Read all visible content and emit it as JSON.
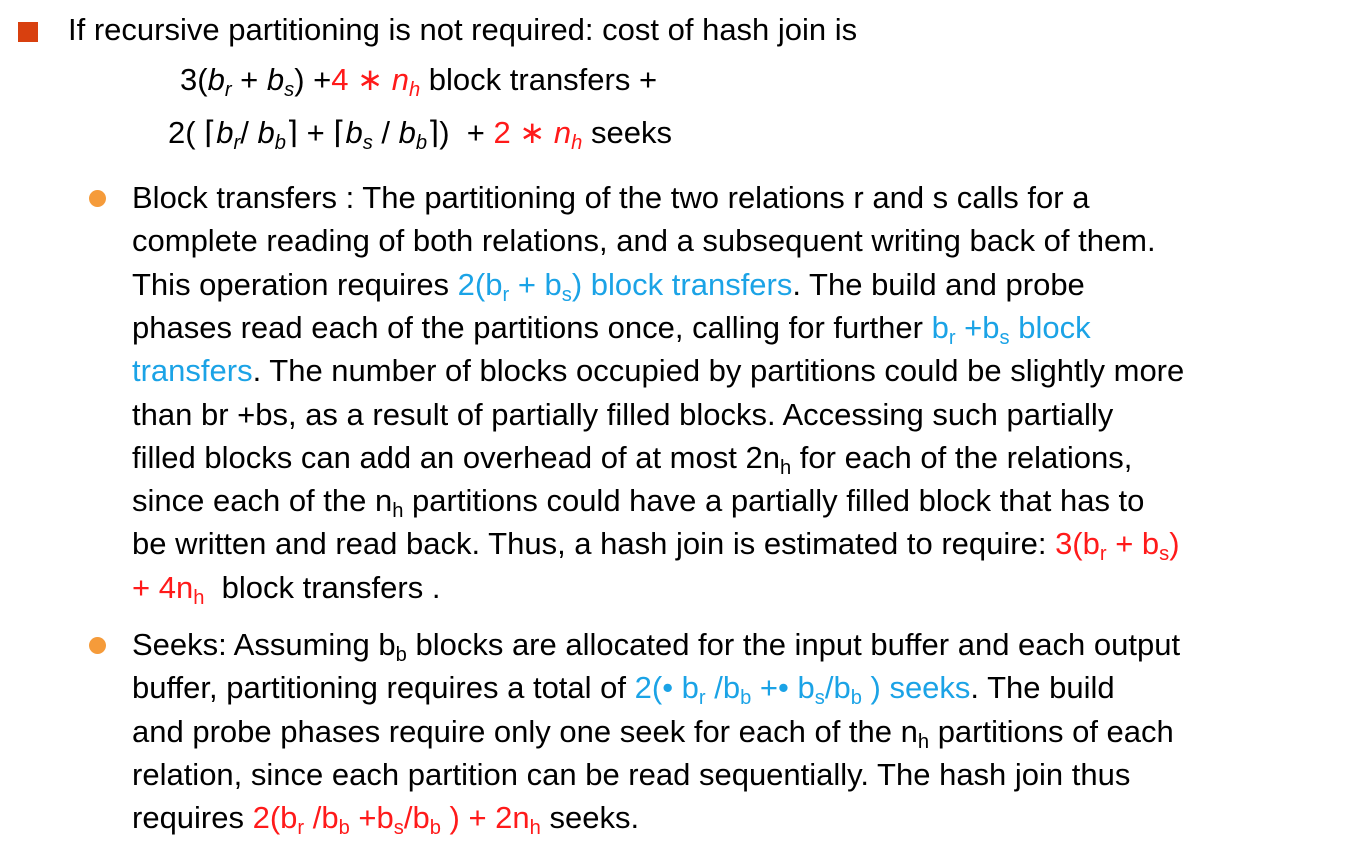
{
  "heading": {
    "lines": [
      [
        {
          "text": "If recursive partitioning is not required: cost of hash join is"
        }
      ],
      [
        {
          "text": "3("
        },
        {
          "text": "b",
          "format": "italic"
        },
        {
          "text": "r",
          "format": "sub italic"
        },
        {
          "text": " + "
        },
        {
          "text": "b",
          "format": "italic"
        },
        {
          "text": "s",
          "format": "sub italic"
        },
        {
          "text": ") +"
        },
        {
          "text": "4 ∗ ",
          "color": "#ff1a1a"
        },
        {
          "text": "n",
          "color": "#ff1a1a",
          "format": "italic"
        },
        {
          "text": "h",
          "color": "#ff1a1a",
          "format": "sub italic"
        },
        {
          "text": " block transfers +"
        }
      ],
      [
        {
          "text": "2( ⌈"
        },
        {
          "text": "b",
          "format": "italic"
        },
        {
          "text": "r",
          "format": "sub italic"
        },
        {
          "text": "/ "
        },
        {
          "text": "b",
          "format": "italic"
        },
        {
          "text": "b",
          "format": "sub italic"
        },
        {
          "text": "⌉ + ⌈"
        },
        {
          "text": "b",
          "format": "italic"
        },
        {
          "text": "s",
          "format": "sub italic"
        },
        {
          "text": " / "
        },
        {
          "text": "b",
          "format": "italic"
        },
        {
          "text": "b",
          "format": "sub italic"
        },
        {
          "text": "⌉)  + "
        },
        {
          "text": "2 ∗ ",
          "color": "#ff1a1a"
        },
        {
          "text": "n",
          "color": "#ff1a1a",
          "format": "italic"
        },
        {
          "text": "h",
          "color": "#ff1a1a",
          "format": "sub italic"
        },
        {
          "text": " seeks"
        }
      ]
    ]
  },
  "bullets": [
    {
      "lines": [
        [
          {
            "text": "Block transfers : The partitioning of the two relations r and s calls for a"
          }
        ],
        [
          {
            "text": "complete reading of both relations, and a subsequent writing back of them."
          }
        ],
        [
          {
            "text": "This operation requires "
          },
          {
            "text": "2(b",
            "color": "#1ba3e6"
          },
          {
            "text": "r",
            "color": "#1ba3e6",
            "format": "sub"
          },
          {
            "text": " + b",
            "color": "#1ba3e6"
          },
          {
            "text": "s",
            "color": "#1ba3e6",
            "format": "sub"
          },
          {
            "text": ") block transfers",
            "color": "#1ba3e6"
          },
          {
            "text": ". The build and probe"
          }
        ],
        [
          {
            "text": "phases read each of the partitions once, calling for further "
          },
          {
            "text": "b",
            "color": "#1ba3e6"
          },
          {
            "text": "r",
            "color": "#1ba3e6",
            "format": "sub"
          },
          {
            "text": " +b",
            "color": "#1ba3e6"
          },
          {
            "text": "s",
            "color": "#1ba3e6",
            "format": "sub"
          },
          {
            "text": " block",
            "color": "#1ba3e6"
          }
        ],
        [
          {
            "text": "transfers",
            "color": "#1ba3e6"
          },
          {
            "text": ". The number of blocks occupied by partitions could be slightly more"
          }
        ],
        [
          {
            "text": "than br +bs, as a result of partially filled blocks. Accessing such partially"
          }
        ],
        [
          {
            "text": "filled blocks can add an overhead of at most 2n"
          },
          {
            "text": "h",
            "format": "sub"
          },
          {
            "text": " for each of the relations,"
          }
        ],
        [
          {
            "text": "since each of the n"
          },
          {
            "text": "h",
            "format": "sub"
          },
          {
            "text": " partitions could have a partially filled block that has to"
          }
        ],
        [
          {
            "text": "be written and read back. Thus, a hash join is estimated to require: "
          },
          {
            "text": "3(b",
            "color": "#ff1a1a"
          },
          {
            "text": "r",
            "color": "#ff1a1a",
            "format": "sub"
          },
          {
            "text": " + b",
            "color": "#ff1a1a"
          },
          {
            "text": "s",
            "color": "#ff1a1a",
            "format": "sub"
          },
          {
            "text": ")",
            "color": "#ff1a1a"
          }
        ],
        [
          {
            "text": "+ 4n",
            "color": "#ff1a1a"
          },
          {
            "text": "h",
            "color": "#ff1a1a",
            "format": "sub"
          },
          {
            "text": "  block transfers ."
          }
        ]
      ]
    },
    {
      "lines": [
        [
          {
            "text": "Seeks: Assuming b"
          },
          {
            "text": "b",
            "format": "sub"
          },
          {
            "text": " blocks are allocated for the input buffer and each output"
          }
        ],
        [
          {
            "text": "buffer, partitioning requires a total of "
          },
          {
            "text": "2(• b",
            "color": "#1ba3e6"
          },
          {
            "text": "r",
            "color": "#1ba3e6",
            "format": "sub"
          },
          {
            "text": " /b",
            "color": "#1ba3e6"
          },
          {
            "text": "b",
            "color": "#1ba3e6",
            "format": "sub"
          },
          {
            "text": " +• b",
            "color": "#1ba3e6"
          },
          {
            "text": "s",
            "color": "#1ba3e6",
            "format": "sub"
          },
          {
            "text": "/b",
            "color": "#1ba3e6"
          },
          {
            "text": "b",
            "color": "#1ba3e6",
            "format": "sub"
          },
          {
            "text": " ) seeks",
            "color": "#1ba3e6"
          },
          {
            "text": ". The build"
          }
        ],
        [
          {
            "text": "and probe phases require only one seek for each of the n"
          },
          {
            "text": "h",
            "format": "sub"
          },
          {
            "text": " partitions of each"
          }
        ],
        [
          {
            "text": "relation, since each partition can be read sequentially. The hash join thus"
          }
        ],
        [
          {
            "text": "requires "
          },
          {
            "text": "2(b",
            "color": "#ff1a1a"
          },
          {
            "text": "r",
            "color": "#ff1a1a",
            "format": "sub"
          },
          {
            "text": " /b",
            "color": "#ff1a1a"
          },
          {
            "text": "b",
            "color": "#ff1a1a",
            "format": "sub"
          },
          {
            "text": " +b",
            "color": "#ff1a1a"
          },
          {
            "text": "s",
            "color": "#ff1a1a",
            "format": "sub"
          },
          {
            "text": "/b",
            "color": "#ff1a1a"
          },
          {
            "text": "b",
            "color": "#ff1a1a",
            "format": "sub"
          },
          {
            "text": " ) + 2n",
            "color": "#ff1a1a"
          },
          {
            "text": "h",
            "color": "#ff1a1a",
            "format": "sub"
          },
          {
            "text": " seeks."
          }
        ]
      ]
    }
  ]
}
